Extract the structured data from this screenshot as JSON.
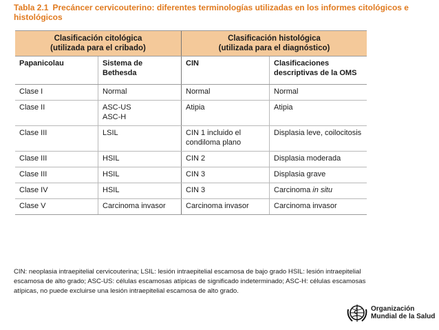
{
  "title": {
    "number": "Tabla 2.1",
    "text": "Precáncer cervicouterino: diferentes terminologías utilizadas en los informes citológicos e histológicos"
  },
  "table": {
    "group_headers": [
      {
        "line1": "Clasificación citológica",
        "line2": "(utilizada para el cribado)"
      },
      {
        "line1": "Clasificación histológica",
        "line2": "(utilizada para el diagnóstico)"
      }
    ],
    "columns": [
      "Papanicolau",
      "Sistema de Bethesda",
      "CIN",
      "Clasificaciones descriptivas de la OMS"
    ],
    "rows": [
      [
        "Clase I",
        "Normal",
        "Normal",
        "Normal"
      ],
      [
        "Clase II",
        "ASC-US\nASC-H",
        "Atipia",
        "Atipia"
      ],
      [
        "Clase III",
        "LSIL",
        "CIN 1 incluido el condiloma plano",
        "Displasia leve, coilocitosis"
      ],
      [
        "Clase III",
        "HSIL",
        "CIN 2",
        "Displasia moderada"
      ],
      [
        "Clase III",
        "HSIL",
        "CIN 3",
        "Displasia grave"
      ],
      [
        "Clase IV",
        "HSIL",
        "CIN 3",
        "Carcinoma in situ"
      ],
      [
        "Clase V",
        "Carcinoma invasor",
        "Carcinoma invasor",
        "Carcinoma invasor"
      ]
    ]
  },
  "footnote": "CIN: neoplasia intraepitelial cervicouterina; LSIL: lesión intraepitelial escamosa de bajo grado HSIL: lesión intraepitelial escamosa de alto grado; ASC-US: células escamosas atípicas de significado indeterminado; ASC-H: células escamosas atípicas, no puede excluirse una lesión intraepitelial escamosa de alto grado.",
  "logo": {
    "line1": "Organización",
    "line2": "Mundial de la Salud",
    "icon": "who-emblem-icon"
  },
  "colors": {
    "title": "#e07a1f",
    "header_fill": "#f4c99a"
  }
}
